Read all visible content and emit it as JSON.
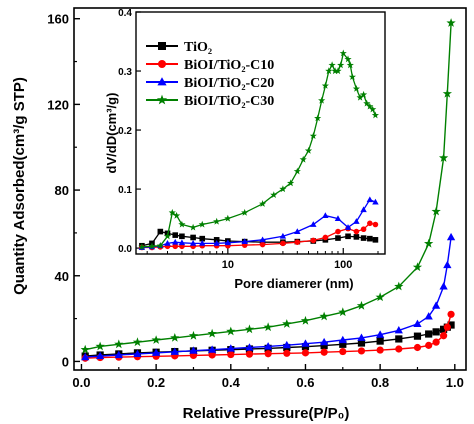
{
  "chart_data": [
    {
      "type": "line",
      "xlabel": "Relative Pressure(P/P₀)",
      "ylabel": "Quantity Adsorbed(cm³/g STP)",
      "xlim": [
        -0.02,
        1.03
      ],
      "ylim": [
        -4,
        165
      ],
      "xticks": [
        "0.0",
        "0.2",
        "0.4",
        "0.6",
        "0.8",
        "1.0"
      ],
      "yticks": [
        "0",
        "40",
        "80",
        "120",
        "160"
      ],
      "series": [
        {
          "name": "TiO₂",
          "color": "#000000",
          "marker": "square",
          "x": [
            0.01,
            0.05,
            0.1,
            0.15,
            0.2,
            0.25,
            0.3,
            0.35,
            0.4,
            0.45,
            0.5,
            0.55,
            0.6,
            0.65,
            0.7,
            0.75,
            0.8,
            0.85,
            0.9,
            0.93,
            0.95,
            0.97,
            0.98,
            0.99
          ],
          "y": [
            2.5,
            3,
            3.5,
            4,
            4.3,
            4.6,
            4.9,
            5.2,
            5.5,
            5.8,
            6.1,
            6.5,
            6.9,
            7.4,
            8,
            8.6,
            9.5,
            10.5,
            11.8,
            12.8,
            13.8,
            15,
            16,
            17
          ]
        },
        {
          "name": "BiOI/TiO₂-C10",
          "color": "#ff0000",
          "marker": "circle",
          "x": [
            0.01,
            0.05,
            0.1,
            0.15,
            0.2,
            0.25,
            0.3,
            0.35,
            0.4,
            0.45,
            0.5,
            0.55,
            0.6,
            0.65,
            0.7,
            0.75,
            0.8,
            0.85,
            0.9,
            0.93,
            0.95,
            0.97,
            0.98,
            0.99
          ],
          "y": [
            1.5,
            1.8,
            2,
            2.2,
            2.4,
            2.6,
            2.8,
            3,
            3.2,
            3.4,
            3.6,
            3.8,
            4,
            4.3,
            4.6,
            4.9,
            5.3,
            5.8,
            6.5,
            7.5,
            9,
            12,
            16,
            22
          ]
        },
        {
          "name": "BiOI/TiO₂-C20",
          "color": "#0000ff",
          "marker": "triangle",
          "x": [
            0.01,
            0.05,
            0.1,
            0.15,
            0.2,
            0.25,
            0.3,
            0.35,
            0.4,
            0.45,
            0.5,
            0.55,
            0.6,
            0.65,
            0.7,
            0.75,
            0.8,
            0.85,
            0.9,
            0.93,
            0.95,
            0.97,
            0.98,
            0.99
          ],
          "y": [
            2,
            2.5,
            3,
            3.5,
            4,
            4.5,
            5,
            5.5,
            6,
            6.5,
            7,
            7.6,
            8.3,
            9,
            10,
            11,
            12.5,
            14.5,
            17.5,
            21,
            26,
            35,
            45,
            58
          ]
        },
        {
          "name": "BiOI/TiO₂-C30",
          "color": "#008000",
          "marker": "star",
          "x": [
            0.01,
            0.05,
            0.1,
            0.15,
            0.2,
            0.25,
            0.3,
            0.35,
            0.4,
            0.45,
            0.5,
            0.55,
            0.6,
            0.65,
            0.7,
            0.75,
            0.8,
            0.85,
            0.9,
            0.93,
            0.95,
            0.97,
            0.98,
            0.99
          ],
          "y": [
            5.5,
            7,
            8,
            9,
            10,
            11,
            12,
            13,
            14,
            15,
            16,
            17.5,
            19,
            21,
            23,
            26,
            30,
            35,
            44,
            55,
            70,
            95,
            125,
            158
          ]
        }
      ]
    },
    {
      "type": "line",
      "xlabel": "Pore diamerer (nm)",
      "ylabel": "dV/dD(cm³/g)",
      "xscale": "log",
      "xlim": [
        1.6,
        230
      ],
      "ylim": [
        -0.01,
        0.4
      ],
      "xticks": [
        "10",
        "100"
      ],
      "yticks": [
        "0.0",
        "0.1",
        "0.2",
        "0.3",
        "0.4"
      ],
      "series": [
        {
          "name": "TiO₂",
          "color": "#000000",
          "marker": "square",
          "x": [
            1.8,
            2.2,
            2.6,
            3,
            3.5,
            4,
            5,
            6,
            8,
            10,
            14,
            20,
            30,
            40,
            55,
            70,
            90,
            110,
            130,
            150,
            170,
            190
          ],
          "y": [
            0.004,
            0.008,
            0.028,
            0.025,
            0.022,
            0.02,
            0.018,
            0.016,
            0.014,
            0.012,
            0.011,
            0.01,
            0.01,
            0.011,
            0.012,
            0.014,
            0.017,
            0.02,
            0.019,
            0.017,
            0.016,
            0.014
          ]
        },
        {
          "name": "BiOI/TiO₂-C10",
          "color": "#ff0000",
          "marker": "circle",
          "x": [
            1.8,
            2.2,
            2.6,
            3,
            3.5,
            4,
            5,
            6,
            8,
            10,
            14,
            20,
            30,
            40,
            55,
            70,
            90,
            110,
            130,
            150,
            170,
            190
          ],
          "y": [
            0.001,
            0.001,
            0.002,
            0.003,
            0.003,
            0.003,
            0.003,
            0.004,
            0.004,
            0.004,
            0.005,
            0.006,
            0.008,
            0.01,
            0.013,
            0.018,
            0.028,
            0.033,
            0.028,
            0.032,
            0.042,
            0.04
          ]
        },
        {
          "name": "BiOI/TiO₂-C20",
          "color": "#0000ff",
          "marker": "triangle",
          "x": [
            1.8,
            2.2,
            2.6,
            3,
            3.5,
            4,
            5,
            6,
            8,
            10,
            14,
            20,
            30,
            40,
            55,
            70,
            90,
            110,
            130,
            150,
            170,
            190
          ],
          "y": [
            0.001,
            0.002,
            0.004,
            0.008,
            0.01,
            0.009,
            0.008,
            0.008,
            0.008,
            0.009,
            0.011,
            0.014,
            0.02,
            0.028,
            0.04,
            0.055,
            0.05,
            0.035,
            0.045,
            0.065,
            0.082,
            0.078
          ]
        },
        {
          "name": "BiOI/TiO₂-C30",
          "color": "#008000",
          "marker": "star",
          "x": [
            1.8,
            2.2,
            2.6,
            3,
            3.3,
            3.6,
            4,
            5,
            6,
            8,
            10,
            14,
            20,
            25,
            30,
            35,
            40,
            45,
            50,
            55,
            60,
            65,
            70,
            75,
            80,
            85,
            90,
            95,
            100,
            110,
            115,
            120,
            130,
            140,
            150,
            160,
            170,
            180,
            190
          ],
          "y": [
            0.002,
            0.003,
            0.004,
            0.02,
            0.06,
            0.055,
            0.04,
            0.035,
            0.04,
            0.045,
            0.05,
            0.06,
            0.075,
            0.09,
            0.1,
            0.11,
            0.13,
            0.15,
            0.165,
            0.19,
            0.22,
            0.25,
            0.275,
            0.3,
            0.31,
            0.3,
            0.3,
            0.31,
            0.33,
            0.32,
            0.31,
            0.29,
            0.27,
            0.255,
            0.26,
            0.245,
            0.24,
            0.235,
            0.225
          ]
        }
      ]
    }
  ]
}
